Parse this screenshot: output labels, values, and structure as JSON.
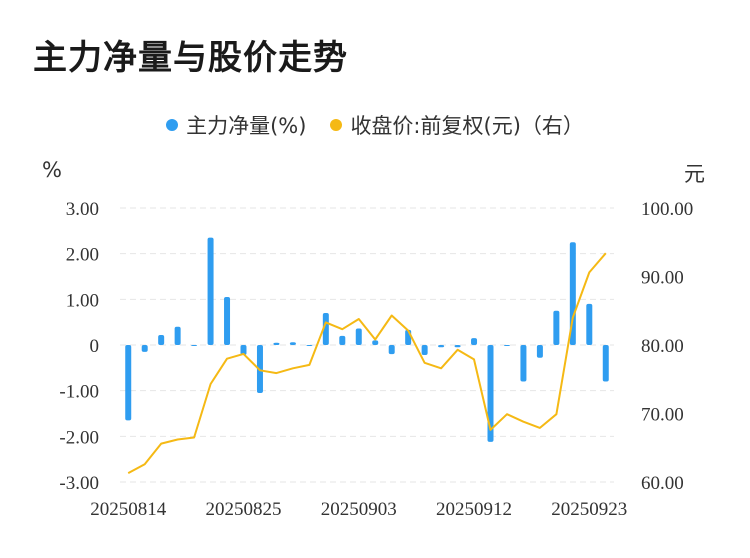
{
  "title": "主力净量与股价走势",
  "legend": {
    "series1": "主力净量(%)",
    "series2": "收盘价:前复权(元)（右）"
  },
  "units": {
    "left": "%",
    "right": "元"
  },
  "colors": {
    "bar": "#2f9df0",
    "line": "#f5b914",
    "grid": "#e6e6e6"
  },
  "chart_data": {
    "type": "bar+line",
    "x_tick_labels": [
      "20250814",
      "20250825",
      "20250903",
      "20250912",
      "20250923"
    ],
    "x_tick_indices": [
      0,
      7,
      14,
      21,
      28
    ],
    "y_left": {
      "min": -3,
      "max": 3,
      "ticks": [
        "3.00",
        "2.00",
        "1.00",
        "0",
        "-1.00",
        "-2.00",
        "-3.00"
      ]
    },
    "y_right": {
      "min": 60,
      "max": 100,
      "ticks": [
        "100.00",
        "90.00",
        "80.00",
        "70.00",
        "60.00"
      ]
    },
    "series": [
      {
        "name": "主力净量(%)",
        "type": "bar",
        "axis": "left",
        "values": [
          -1.65,
          -0.15,
          0.22,
          0.4,
          -0.02,
          2.35,
          1.05,
          -0.22,
          -1.05,
          0.05,
          0.06,
          0.0,
          0.7,
          0.2,
          0.36,
          0.1,
          -0.2,
          0.33,
          -0.22,
          -0.05,
          -0.05,
          0.15,
          -2.12,
          -0.02,
          -0.8,
          -0.28,
          0.75,
          2.25,
          0.9,
          -0.8
        ]
      },
      {
        "name": "收盘价:前复权(元)（右）",
        "type": "line",
        "axis": "right",
        "values": [
          61.3,
          62.6,
          65.6,
          66.2,
          66.5,
          74.3,
          78.0,
          78.7,
          76.3,
          75.9,
          76.6,
          77.1,
          83.3,
          82.3,
          83.8,
          80.8,
          84.3,
          82.1,
          77.4,
          76.6,
          79.3,
          77.9,
          67.6,
          69.9,
          68.8,
          67.9,
          69.9,
          84.0,
          90.6,
          93.4
        ]
      }
    ]
  }
}
